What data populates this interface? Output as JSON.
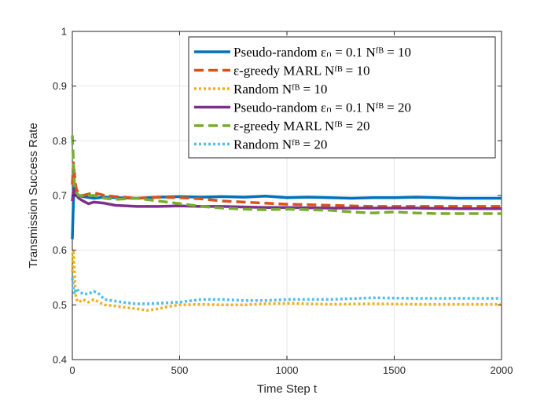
{
  "chart_data": {
    "type": "line",
    "title": "",
    "xlabel": "Time Step t",
    "ylabel": "Transmission Success Rate",
    "xlim": [
      0,
      2000
    ],
    "ylim": [
      0.4,
      1.0
    ],
    "xticks": [
      0,
      500,
      1000,
      1500,
      2000
    ],
    "yticks": [
      0.4,
      0.5,
      0.6,
      0.7,
      0.8,
      0.9,
      1.0
    ],
    "xtick_labels": [
      "0",
      "500",
      "1000",
      "1500",
      "2000"
    ],
    "ytick_labels": [
      "0.4",
      "0.5",
      "0.6",
      "0.7",
      "0.8",
      "0.9",
      "1"
    ],
    "grid": true,
    "legend_position": "top-right",
    "series": [
      {
        "name": "Pseudo-random ε_n = 0.1 N_FB = 10",
        "legend_label": "Pseudo-random εₙ = 0.1 Nᶠᴮ = 10",
        "color": "#0072BD",
        "dash": "solid",
        "x": [
          0,
          5,
          10,
          15,
          20,
          30,
          50,
          100,
          150,
          200,
          300,
          400,
          500,
          600,
          700,
          800,
          900,
          1000,
          1100,
          1200,
          1300,
          1400,
          1500,
          1600,
          1700,
          1800,
          1900,
          2000
        ],
        "y": [
          0.62,
          0.69,
          0.72,
          0.71,
          0.7,
          0.7,
          0.698,
          0.695,
          0.697,
          0.696,
          0.695,
          0.697,
          0.698,
          0.697,
          0.698,
          0.697,
          0.699,
          0.696,
          0.697,
          0.696,
          0.695,
          0.696,
          0.696,
          0.697,
          0.696,
          0.695,
          0.695,
          0.695
        ]
      },
      {
        "name": "ε-greedy MARL N_FB = 10",
        "legend_label": "ε-greedy MARL Nᶠᴮ = 10",
        "color": "#D95319",
        "dash": "dashed",
        "x": [
          0,
          5,
          10,
          15,
          20,
          30,
          50,
          100,
          150,
          200,
          300,
          400,
          500,
          600,
          700,
          800,
          900,
          1000,
          1100,
          1200,
          1300,
          1400,
          1500,
          1600,
          1700,
          1800,
          1900,
          2000
        ],
        "y": [
          0.72,
          0.76,
          0.74,
          0.72,
          0.71,
          0.705,
          0.7,
          0.705,
          0.7,
          0.698,
          0.695,
          0.697,
          0.696,
          0.694,
          0.69,
          0.688,
          0.686,
          0.684,
          0.683,
          0.682,
          0.681,
          0.68,
          0.68,
          0.68,
          0.68,
          0.68,
          0.68,
          0.68
        ]
      },
      {
        "name": "Random N_FB = 10",
        "legend_label": "Random Nᶠᴮ = 10",
        "color": "#EDB120",
        "dash": "dotted",
        "x": [
          0,
          5,
          10,
          15,
          20,
          30,
          50,
          75,
          100,
          125,
          150,
          200,
          250,
          300,
          350,
          400,
          450,
          500,
          600,
          700,
          800,
          900,
          1000,
          1200,
          1400,
          1600,
          1800,
          2000
        ],
        "y": [
          0.56,
          0.6,
          0.56,
          0.52,
          0.51,
          0.505,
          0.51,
          0.505,
          0.51,
          0.505,
          0.5,
          0.498,
          0.495,
          0.493,
          0.49,
          0.493,
          0.497,
          0.5,
          0.501,
          0.5,
          0.5,
          0.502,
          0.503,
          0.501,
          0.502,
          0.501,
          0.501,
          0.501
        ]
      },
      {
        "name": "Pseudo-random ε_n = 0.1 N_FB = 20",
        "legend_label": "Pseudo-random εₙ = 0.1 Nᶠᴮ = 20",
        "color": "#7E2F8E",
        "dash": "solid",
        "x": [
          0,
          5,
          10,
          15,
          20,
          30,
          50,
          75,
          100,
          150,
          200,
          300,
          400,
          500,
          600,
          700,
          800,
          900,
          1000,
          1200,
          1400,
          1600,
          1800,
          2000
        ],
        "y": [
          0.69,
          0.71,
          0.705,
          0.7,
          0.7,
          0.695,
          0.69,
          0.685,
          0.688,
          0.686,
          0.682,
          0.68,
          0.68,
          0.681,
          0.68,
          0.68,
          0.679,
          0.678,
          0.678,
          0.677,
          0.677,
          0.677,
          0.676,
          0.676
        ]
      },
      {
        "name": "ε-greedy MARL N_FB = 20",
        "legend_label": "ε-greedy MARL Nᶠᴮ = 20",
        "color": "#77AC30",
        "dash": "dashed",
        "x": [
          0,
          5,
          10,
          15,
          20,
          30,
          50,
          100,
          150,
          200,
          300,
          400,
          500,
          600,
          700,
          800,
          900,
          1000,
          1100,
          1200,
          1300,
          1400,
          1500,
          1600,
          1700,
          1800,
          1900,
          2000
        ],
        "y": [
          0.81,
          0.76,
          0.72,
          0.71,
          0.705,
          0.7,
          0.7,
          0.7,
          0.695,
          0.693,
          0.695,
          0.69,
          0.685,
          0.68,
          0.677,
          0.675,
          0.674,
          0.675,
          0.674,
          0.673,
          0.67,
          0.668,
          0.67,
          0.668,
          0.667,
          0.667,
          0.667,
          0.667
        ]
      },
      {
        "name": "Random N_FB = 20",
        "legend_label": "Random Nᶠᴮ = 20",
        "color": "#4DBEEE",
        "dash": "dotted",
        "x": [
          0,
          5,
          10,
          15,
          20,
          30,
          50,
          75,
          100,
          125,
          150,
          200,
          250,
          300,
          350,
          400,
          500,
          600,
          700,
          800,
          900,
          1000,
          1200,
          1400,
          1600,
          1800,
          2000
        ],
        "y": [
          0.55,
          0.53,
          0.52,
          0.525,
          0.53,
          0.525,
          0.52,
          0.52,
          0.525,
          0.52,
          0.51,
          0.507,
          0.504,
          0.502,
          0.502,
          0.503,
          0.505,
          0.51,
          0.51,
          0.508,
          0.508,
          0.51,
          0.51,
          0.513,
          0.512,
          0.512,
          0.512
        ]
      }
    ]
  }
}
